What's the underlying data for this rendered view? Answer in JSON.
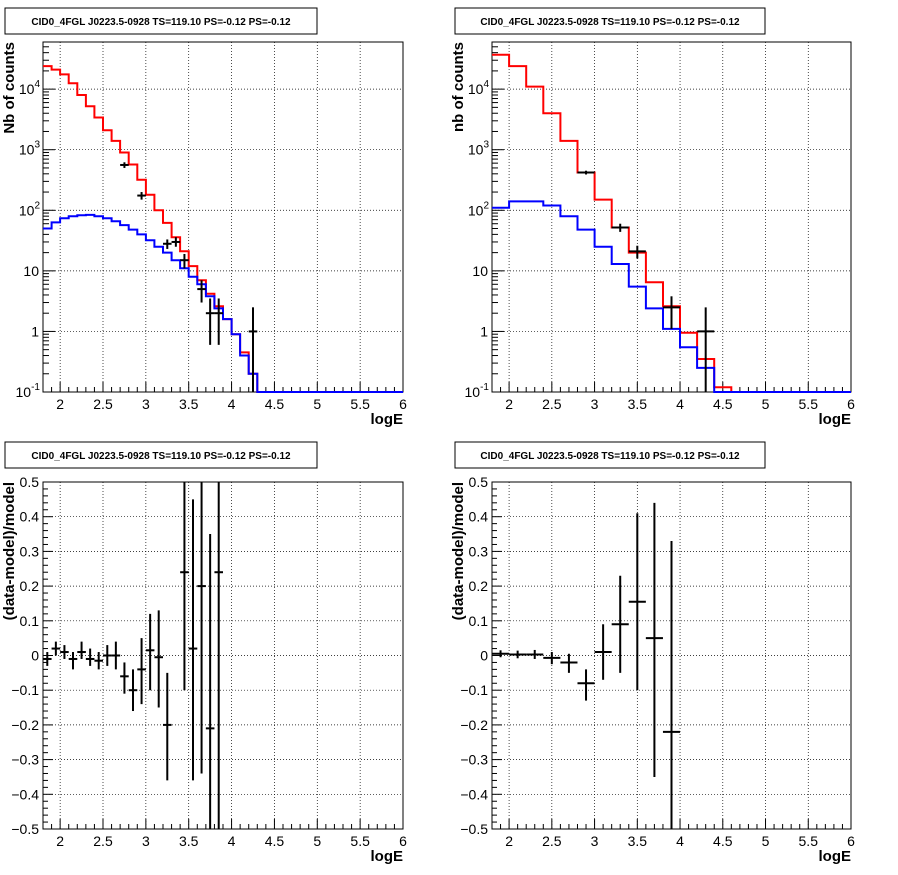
{
  "chart_data": [
    {
      "type": "line",
      "title": "CID0_4FGL J0223.5-0928 TS=119.10 PS=-0.12 PS=-0.12",
      "xlabel": "logE",
      "ylabel": "Nb of counts",
      "xlim": [
        1.8,
        6.0
      ],
      "ylim": [
        0.1,
        60000
      ],
      "yscale": "log",
      "grid": true,
      "x_ticks": [
        "2",
        "2.5",
        "3",
        "3.5",
        "4",
        "4.5",
        "5",
        "5.5",
        "6"
      ],
      "y_ticks": [
        "10^-1",
        "1",
        "10",
        "10^2",
        "10^3",
        "10^4"
      ],
      "bin_width": 0.1,
      "bins_logE_low": [
        1.8,
        1.9,
        2.0,
        2.1,
        2.2,
        2.3,
        2.4,
        2.5,
        2.6,
        2.7,
        2.8,
        2.9,
        3.0,
        3.1,
        3.2,
        3.3,
        3.4,
        3.5,
        3.6,
        3.7,
        3.8,
        3.9,
        4.0,
        4.1,
        4.2,
        4.3,
        4.4,
        4.5,
        4.6,
        4.7,
        4.8,
        4.9,
        5.0,
        5.1,
        5.2,
        5.3,
        5.4,
        5.5,
        5.6,
        5.7,
        5.8,
        5.9
      ],
      "series": [
        {
          "color": "#ff0000",
          "values": [
            24000,
            21000,
            17500,
            12500,
            8000,
            5200,
            3400,
            2100,
            1400,
            900,
            570,
            320,
            180,
            100,
            62,
            36,
            21,
            12,
            7,
            4.2,
            2.6,
            1.6,
            0.9,
            0.45,
            0.2,
            0.1,
            0.1,
            0.1,
            0.1,
            0.1,
            0.1,
            0.1,
            0.1,
            0.1,
            0.1,
            0.1,
            0.1,
            0.1,
            0.1,
            0.1,
            0.1,
            0.1
          ]
        },
        {
          "color": "#0000ff",
          "values": [
            50,
            63,
            74,
            80,
            83,
            84,
            80,
            74,
            66,
            57,
            48,
            40,
            32,
            25,
            20,
            15,
            11,
            8,
            6,
            3.8,
            2.4,
            1.6,
            0.9,
            0.4,
            0.2,
            0.1,
            0.1,
            0.1,
            0.1,
            0.1,
            0.1,
            0.1,
            0.1,
            0.1,
            0.1,
            0.1,
            0.1,
            0.1,
            0.1,
            0.1,
            0.1,
            0.1
          ]
        }
      ],
      "data_points": [
        {
          "x": 2.75,
          "y": 560,
          "ylo": 500,
          "yhi": 620
        },
        {
          "x": 2.95,
          "y": 175,
          "ylo": 150,
          "yhi": 200
        },
        {
          "x": 3.25,
          "y": 28,
          "ylo": 23,
          "yhi": 33
        },
        {
          "x": 3.35,
          "y": 30,
          "ylo": 25,
          "yhi": 36
        },
        {
          "x": 3.45,
          "y": 15,
          "ylo": 11,
          "yhi": 19
        },
        {
          "x": 3.65,
          "y": 5,
          "ylo": 3,
          "yhi": 7
        },
        {
          "x": 3.75,
          "y": 2,
          "ylo": 0.6,
          "yhi": 3.5
        },
        {
          "x": 3.85,
          "y": 2,
          "ylo": 0.6,
          "yhi": 3.5
        },
        {
          "x": 4.25,
          "y": 1,
          "ylo": 0.1,
          "yhi": 2.5
        }
      ]
    },
    {
      "type": "line",
      "title": "CID0_4FGL J0223.5-0928 TS=119.10 PS=-0.12 PS=-0.12",
      "xlabel": "logE",
      "ylabel": "nb of counts",
      "xlim": [
        1.8,
        6.0
      ],
      "ylim": [
        0.1,
        60000
      ],
      "yscale": "log",
      "grid": true,
      "x_ticks": [
        "2",
        "2.5",
        "3",
        "3.5",
        "4",
        "4.5",
        "5",
        "5.5",
        "6"
      ],
      "y_ticks": [
        "10^-1",
        "1",
        "10",
        "10^2",
        "10^3",
        "10^4"
      ],
      "bin_width": 0.2,
      "bins_logE_low": [
        1.8,
        2.0,
        2.2,
        2.4,
        2.6,
        2.8,
        3.0,
        3.2,
        3.4,
        3.6,
        3.8,
        4.0,
        4.2,
        4.4,
        4.6,
        4.8,
        5.0,
        5.2,
        5.4,
        5.6,
        5.8
      ],
      "series": [
        {
          "color": "#ff0000",
          "values": [
            37000,
            24000,
            11000,
            4000,
            1400,
            420,
            150,
            52,
            20,
            6.5,
            2.6,
            0.95,
            0.35,
            0.12,
            0.1,
            0.1,
            0.1,
            0.1,
            0.1,
            0.1,
            0.1
          ]
        },
        {
          "color": "#0000ff",
          "values": [
            110,
            140,
            140,
            120,
            80,
            48,
            25,
            13,
            5.5,
            2.4,
            1.1,
            0.55,
            0.25,
            0.1,
            0.1,
            0.1,
            0.1,
            0.1,
            0.1,
            0.1,
            0.1
          ]
        }
      ],
      "data_points": [
        {
          "x": 2.9,
          "y": 420,
          "ylo": 390,
          "yhi": 450
        },
        {
          "x": 3.3,
          "y": 52,
          "ylo": 44,
          "yhi": 60
        },
        {
          "x": 3.5,
          "y": 21,
          "ylo": 16,
          "yhi": 26
        },
        {
          "x": 3.9,
          "y": 2.5,
          "ylo": 1.1,
          "yhi": 3.8
        },
        {
          "x": 4.3,
          "y": 1,
          "ylo": 0.1,
          "yhi": 2.5
        }
      ]
    },
    {
      "type": "scatter",
      "title": "CID0_4FGL J0223.5-0928 TS=119.10 PS=-0.12 PS=-0.12",
      "xlabel": "logE",
      "ylabel": "(data-model)/model",
      "xlim": [
        1.8,
        6.0
      ],
      "ylim": [
        -0.5,
        0.5
      ],
      "grid": true,
      "x_ticks": [
        "2",
        "2.5",
        "3",
        "3.5",
        "4",
        "4.5",
        "5",
        "5.5",
        "6"
      ],
      "y_ticks": [
        "−0.5",
        "−0.4",
        "−0.3",
        "−0.2",
        "−0.1",
        "0",
        "0.1",
        "0.2",
        "0.3",
        "0.4",
        "0.5"
      ],
      "points": [
        {
          "x": 1.85,
          "y": -0.01,
          "ylo": -0.03,
          "yhi": 0.01,
          "xerr": 0.05
        },
        {
          "x": 1.95,
          "y": 0.02,
          "ylo": 0.0,
          "yhi": 0.04,
          "xerr": 0.05
        },
        {
          "x": 2.05,
          "y": 0.01,
          "ylo": -0.01,
          "yhi": 0.03,
          "xerr": 0.05
        },
        {
          "x": 2.15,
          "y": -0.01,
          "ylo": -0.04,
          "yhi": 0.01,
          "xerr": 0.05
        },
        {
          "x": 2.25,
          "y": 0.01,
          "ylo": -0.01,
          "yhi": 0.04,
          "xerr": 0.05
        },
        {
          "x": 2.35,
          "y": -0.01,
          "ylo": -0.03,
          "yhi": 0.02,
          "xerr": 0.05
        },
        {
          "x": 2.45,
          "y": -0.015,
          "ylo": -0.04,
          "yhi": 0.01,
          "xerr": 0.05
        },
        {
          "x": 2.55,
          "y": 0.0,
          "ylo": -0.03,
          "yhi": 0.03,
          "xerr": 0.05
        },
        {
          "x": 2.65,
          "y": 0.0,
          "ylo": -0.04,
          "yhi": 0.04,
          "xerr": 0.05
        },
        {
          "x": 2.75,
          "y": -0.06,
          "ylo": -0.11,
          "yhi": -0.02,
          "xerr": 0.05
        },
        {
          "x": 2.85,
          "y": -0.1,
          "ylo": -0.16,
          "yhi": -0.04,
          "xerr": 0.05
        },
        {
          "x": 2.95,
          "y": -0.04,
          "ylo": -0.14,
          "yhi": 0.05,
          "xerr": 0.05
        },
        {
          "x": 3.05,
          "y": 0.015,
          "ylo": -0.1,
          "yhi": 0.12,
          "xerr": 0.05
        },
        {
          "x": 3.15,
          "y": -0.005,
          "ylo": -0.15,
          "yhi": 0.13,
          "xerr": 0.05
        },
        {
          "x": 3.25,
          "y": -0.2,
          "ylo": -0.36,
          "yhi": -0.05,
          "xerr": 0.05
        },
        {
          "x": 3.45,
          "y": 0.24,
          "ylo": -0.1,
          "yhi": 0.5,
          "xerr": 0.05
        },
        {
          "x": 3.55,
          "y": 0.02,
          "ylo": -0.36,
          "yhi": 0.45,
          "xerr": 0.05
        },
        {
          "x": 3.65,
          "y": 0.2,
          "ylo": -0.34,
          "yhi": 0.5,
          "xerr": 0.05
        },
        {
          "x": 3.75,
          "y": -0.21,
          "ylo": -0.5,
          "yhi": 0.35,
          "xerr": 0.05
        },
        {
          "x": 3.85,
          "y": 0.24,
          "ylo": -0.5,
          "yhi": 0.5,
          "xerr": 0.05
        }
      ]
    },
    {
      "type": "scatter",
      "title": "CID0_4FGL J0223.5-0928 TS=119.10 PS=-0.12 PS=-0.12",
      "xlabel": "logE",
      "ylabel": "(data-model)/model",
      "xlim": [
        1.8,
        6.0
      ],
      "ylim": [
        -0.5,
        0.5
      ],
      "grid": true,
      "x_ticks": [
        "2",
        "2.5",
        "3",
        "3.5",
        "4",
        "4.5",
        "5",
        "5.5",
        "6"
      ],
      "y_ticks": [
        "−0.5",
        "−0.4",
        "−0.3",
        "−0.2",
        "−0.1",
        "0",
        "0.1",
        "0.2",
        "0.3",
        "0.4",
        "0.5"
      ],
      "points": [
        {
          "x": 1.9,
          "y": 0.005,
          "ylo": -0.005,
          "yhi": 0.015,
          "xerr": 0.1
        },
        {
          "x": 2.1,
          "y": 0.003,
          "ylo": -0.008,
          "yhi": 0.014,
          "xerr": 0.1
        },
        {
          "x": 2.3,
          "y": 0.003,
          "ylo": -0.01,
          "yhi": 0.016,
          "xerr": 0.1
        },
        {
          "x": 2.5,
          "y": -0.007,
          "ylo": -0.025,
          "yhi": 0.01,
          "xerr": 0.1
        },
        {
          "x": 2.7,
          "y": -0.02,
          "ylo": -0.05,
          "yhi": 0.005,
          "xerr": 0.1
        },
        {
          "x": 2.9,
          "y": -0.08,
          "ylo": -0.13,
          "yhi": -0.04,
          "xerr": 0.1
        },
        {
          "x": 3.1,
          "y": 0.01,
          "ylo": -0.07,
          "yhi": 0.09,
          "xerr": 0.1
        },
        {
          "x": 3.3,
          "y": 0.09,
          "ylo": -0.05,
          "yhi": 0.23,
          "xerr": 0.1
        },
        {
          "x": 3.5,
          "y": 0.155,
          "ylo": -0.1,
          "yhi": 0.41,
          "xerr": 0.1
        },
        {
          "x": 3.7,
          "y": 0.05,
          "ylo": -0.35,
          "yhi": 0.44,
          "xerr": 0.1
        },
        {
          "x": 3.9,
          "y": -0.22,
          "ylo": -0.5,
          "yhi": 0.33,
          "xerr": 0.1
        }
      ]
    }
  ]
}
